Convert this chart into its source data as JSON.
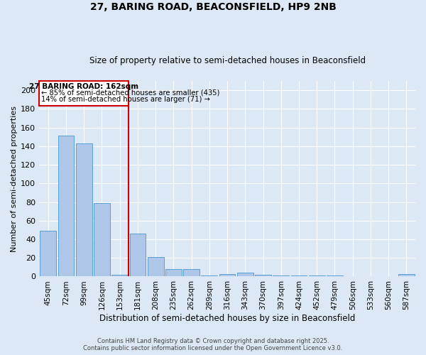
{
  "title1": "27, BARING ROAD, BEACONSFIELD, HP9 2NB",
  "title2": "Size of property relative to semi-detached houses in Beaconsfield",
  "xlabel": "Distribution of semi-detached houses by size in Beaconsfield",
  "ylabel": "Number of semi-detached properties",
  "categories": [
    "45sqm",
    "72sqm",
    "99sqm",
    "126sqm",
    "153sqm",
    "181sqm",
    "208sqm",
    "235sqm",
    "262sqm",
    "289sqm",
    "316sqm",
    "343sqm",
    "370sqm",
    "397sqm",
    "424sqm",
    "452sqm",
    "479sqm",
    "506sqm",
    "533sqm",
    "560sqm",
    "587sqm"
  ],
  "values": [
    49,
    151,
    143,
    79,
    2,
    46,
    21,
    8,
    8,
    1,
    3,
    4,
    2,
    1,
    1,
    1,
    1,
    0,
    0,
    0,
    3
  ],
  "bar_color": "#aec6e8",
  "bar_edge_color": "#5a9fd4",
  "vline_color": "#cc0000",
  "annotation_title": "27 BARING ROAD: 162sqm",
  "annotation_line1": "← 85% of semi-detached houses are smaller (435)",
  "annotation_line2": "14% of semi-detached houses are larger (71) →",
  "annotation_box_color": "#cc0000",
  "ylim": [
    0,
    210
  ],
  "yticks": [
    0,
    20,
    40,
    60,
    80,
    100,
    120,
    140,
    160,
    180,
    200
  ],
  "background_color": "#dce8f5",
  "grid_color": "#ffffff",
  "footer1": "Contains HM Land Registry data © Crown copyright and database right 2025.",
  "footer2": "Contains public sector information licensed under the Open Government Licence v3.0."
}
